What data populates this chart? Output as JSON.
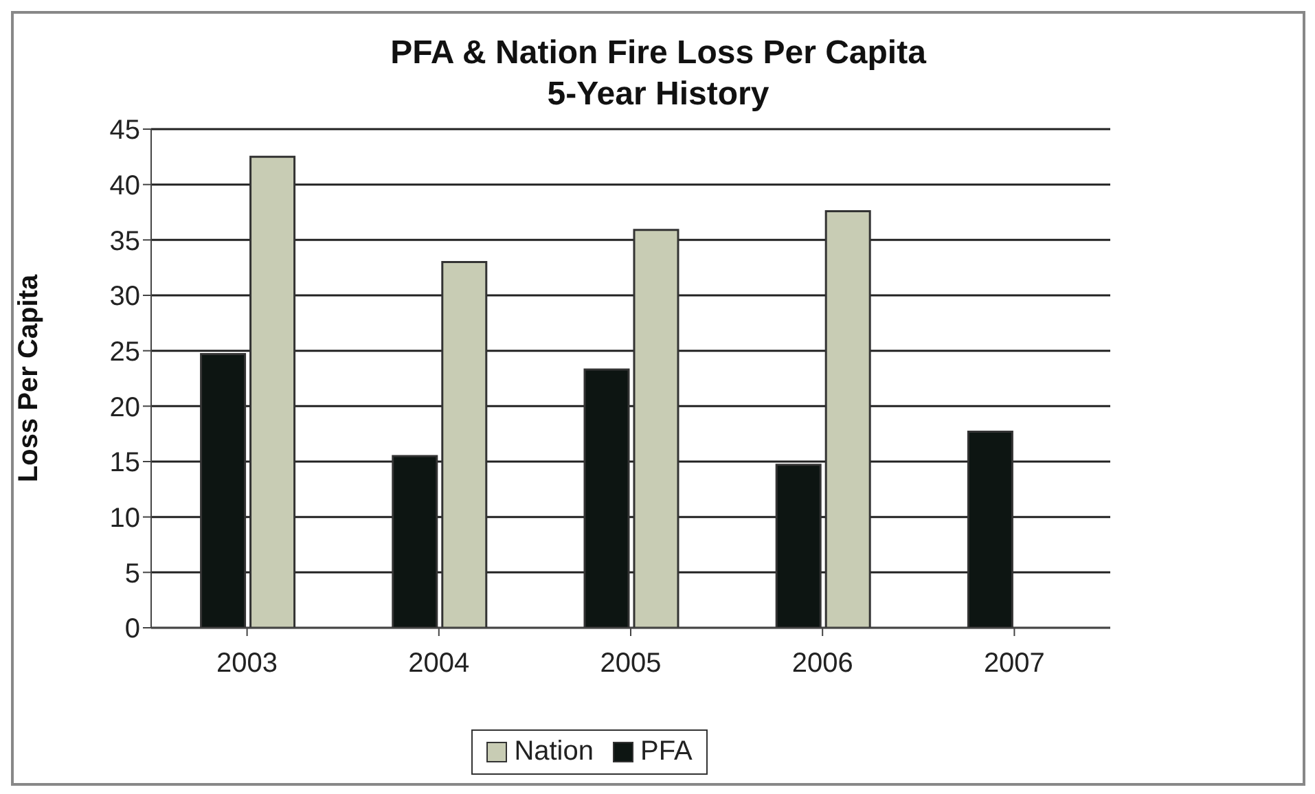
{
  "chart_data": {
    "type": "bar",
    "title": "PFA & Nation Fire Loss Per Capita\n5-Year History",
    "ylabel": "Loss Per Capita",
    "categories": [
      "2003",
      "2004",
      "2005",
      "2006",
      "2007"
    ],
    "series": [
      {
        "name": "PFA",
        "color": "#0d1512",
        "values": [
          24.7,
          15.5,
          23.3,
          14.7,
          17.7
        ]
      },
      {
        "name": "Nation",
        "color": "#c8ccb4",
        "values": [
          42.5,
          33.0,
          35.9,
          37.6,
          null
        ]
      }
    ],
    "ylim": [
      0,
      45
    ],
    "yticks": [
      0,
      5,
      10,
      15,
      20,
      25,
      30,
      35,
      40,
      45
    ],
    "grid": "y",
    "legend": "bottom"
  }
}
